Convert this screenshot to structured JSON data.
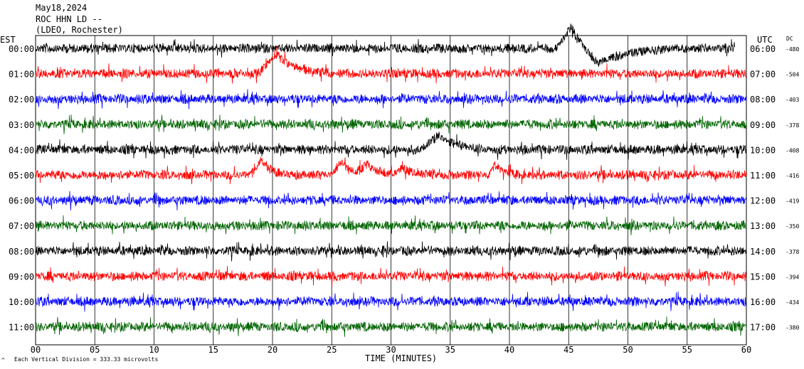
{
  "header": {
    "date": "May18,2024",
    "station": "ROC HHN LD --",
    "network": "(LDEO, Rochester)"
  },
  "left_axis_label": "EST",
  "right_axis_label": "UTC",
  "dc_label": "DC",
  "footer": {
    "scale_note": "Each Vertical Division =  333.33 microvolts",
    "corner_mark": "^"
  },
  "chart_data": {
    "type": "line",
    "title": "",
    "xlabel": "TIME (MINUTES)",
    "ylabel": "",
    "xlim": [
      0,
      60
    ],
    "x_ticks": [
      "00",
      "05",
      "10",
      "15",
      "20",
      "25",
      "30",
      "35",
      "40",
      "45",
      "50",
      "55",
      "60"
    ],
    "grid": true,
    "trace_colors": [
      "#000000",
      "#ff0000",
      "#0000ff",
      "#006400"
    ],
    "rows": [
      {
        "est": "00:00",
        "utc": "06:00",
        "dc": "-480",
        "end_minute": 59,
        "events": [
          {
            "t": 45.2,
            "a": -30,
            "w": 1.2
          },
          {
            "t": 47.5,
            "a": 25,
            "w": 2
          }
        ]
      },
      {
        "est": "01:00",
        "utc": "07:00",
        "dc": "-504",
        "end_minute": 60,
        "events": [
          {
            "t": 20.3,
            "a": -28,
            "w": 1.5
          }
        ]
      },
      {
        "est": "02:00",
        "utc": "08:00",
        "dc": "-403",
        "end_minute": 60,
        "events": []
      },
      {
        "est": "03:00",
        "utc": "09:00",
        "dc": "-378",
        "end_minute": 60,
        "events": []
      },
      {
        "est": "04:00",
        "utc": "10:00",
        "dc": "-408",
        "end_minute": 60,
        "events": [
          {
            "t": 34,
            "a": -20,
            "w": 1.5
          }
        ]
      },
      {
        "est": "05:00",
        "utc": "11:00",
        "dc": "-416",
        "end_minute": 60,
        "events": [
          {
            "t": 19,
            "a": -22,
            "w": 0.8
          },
          {
            "t": 25.8,
            "a": -18,
            "w": 0.9
          },
          {
            "t": 28,
            "a": -14,
            "w": 0.9
          },
          {
            "t": 31,
            "a": -10,
            "w": 0.8
          },
          {
            "t": 38.8,
            "a": -15,
            "w": 0.6
          }
        ]
      },
      {
        "est": "06:00",
        "utc": "12:00",
        "dc": "-419",
        "end_minute": 60,
        "events": []
      },
      {
        "est": "07:00",
        "utc": "13:00",
        "dc": "-350",
        "end_minute": 60,
        "events": []
      },
      {
        "est": "08:00",
        "utc": "14:00",
        "dc": "-378",
        "end_minute": 60,
        "events": []
      },
      {
        "est": "09:00",
        "utc": "15:00",
        "dc": "-394",
        "end_minute": 60,
        "events": []
      },
      {
        "est": "10:00",
        "utc": "16:00",
        "dc": "-434",
        "end_minute": 60,
        "events": []
      },
      {
        "est": "11:00",
        "utc": "17:00",
        "dc": "-380",
        "end_minute": 60,
        "events": []
      }
    ]
  }
}
